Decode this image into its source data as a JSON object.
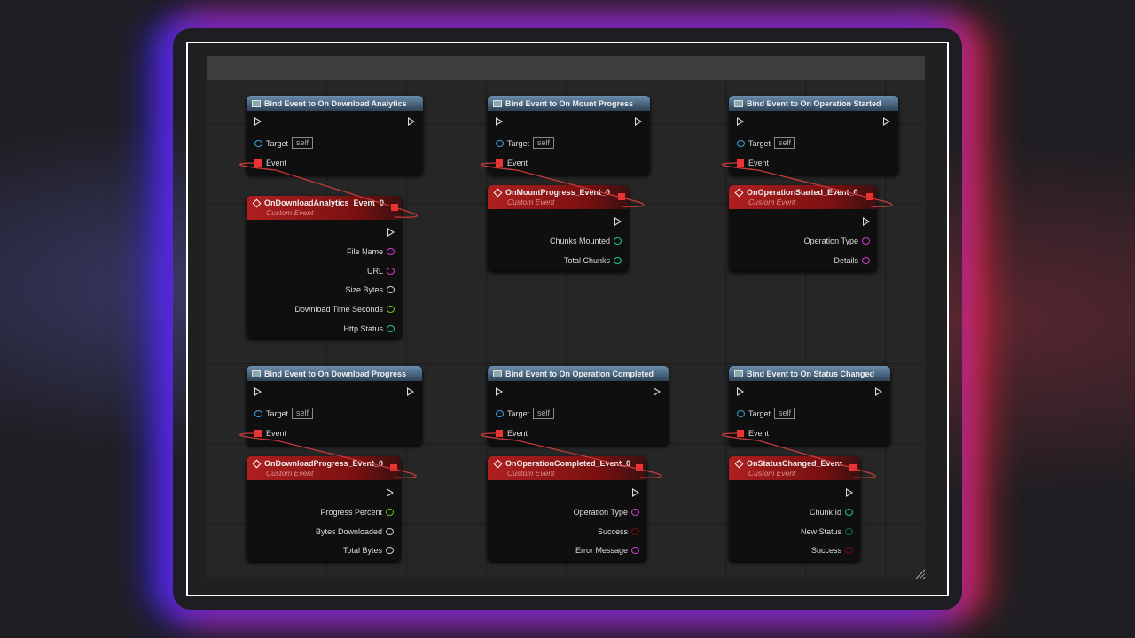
{
  "bind_nodes": [
    {
      "title": "Bind Event to On Download Analytics",
      "target_label": "Target",
      "target_value": "self",
      "event_label": "Event"
    },
    {
      "title": "Bind Event to On Mount Progress",
      "target_label": "Target",
      "target_value": "self",
      "event_label": "Event"
    },
    {
      "title": "Bind Event to On Operation Started",
      "target_label": "Target",
      "target_value": "self",
      "event_label": "Event"
    },
    {
      "title": "Bind Event to On Download Progress",
      "target_label": "Target",
      "target_value": "self",
      "event_label": "Event"
    },
    {
      "title": "Bind Event to On Operation Completed",
      "target_label": "Target",
      "target_value": "self",
      "event_label": "Event"
    },
    {
      "title": "Bind Event to On Status Changed",
      "target_label": "Target",
      "target_value": "self",
      "event_label": "Event"
    }
  ],
  "event_nodes": [
    {
      "title": "OnDownloadAnalytics_Event_0",
      "subtitle": "Custom Event",
      "pins": [
        {
          "label": "File Name",
          "color": "#d23ad2"
        },
        {
          "label": "URL",
          "color": "#d23ad2"
        },
        {
          "label": "Size Bytes",
          "color": "#cfcfcf"
        },
        {
          "label": "Download Time Seconds",
          "color": "#62c51e"
        },
        {
          "label": "Http Status",
          "color": "#1fc39a"
        }
      ]
    },
    {
      "title": "OnMountProgress_Event_0",
      "subtitle": "Custom Event",
      "pins": [
        {
          "label": "Chunks Mounted",
          "color": "#1fc39a"
        },
        {
          "label": "Total Chunks",
          "color": "#1fc39a"
        }
      ]
    },
    {
      "title": "OnOperationStarted_Event_0",
      "subtitle": "Custom Event",
      "pins": [
        {
          "label": "Operation Type",
          "color": "#d23ad2"
        },
        {
          "label": "Details",
          "color": "#d23ad2"
        }
      ]
    },
    {
      "title": "OnDownloadProgress_Event_0",
      "subtitle": "Custom Event",
      "pins": [
        {
          "label": "Progress Percent",
          "color": "#62c51e"
        },
        {
          "label": "Bytes Downloaded",
          "color": "#cfcfcf"
        },
        {
          "label": "Total Bytes",
          "color": "#cfcfcf"
        }
      ]
    },
    {
      "title": "OnOperationCompleted_Event_0",
      "subtitle": "Custom Event",
      "pins": [
        {
          "label": "Operation Type",
          "color": "#d23ad2"
        },
        {
          "label": "Success",
          "color": "#7a0a0a"
        },
        {
          "label": "Error Message",
          "color": "#d23ad2"
        }
      ]
    },
    {
      "title": "OnStatusChanged_Event",
      "subtitle": "Custom Event",
      "pins": [
        {
          "label": "Chunk Id",
          "color": "#1fc39a"
        },
        {
          "label": "New Status",
          "color": "#0a6a5c"
        },
        {
          "label": "Success",
          "color": "#7a0a0a"
        }
      ]
    }
  ],
  "colors": {
    "wire": "#c33a3a",
    "target_pin": "#3aa0e0",
    "event_pin": "#e33333"
  }
}
